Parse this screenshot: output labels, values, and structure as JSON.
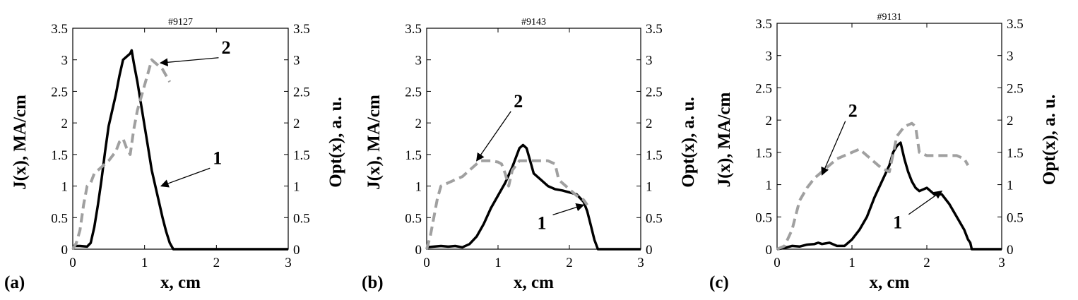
{
  "chart_data": [
    {
      "type": "line",
      "panel_label": "(a)",
      "title": "#9127",
      "xlabel": "x, cm",
      "ylabel_left": "J(x), MA/cm",
      "ylabel_right": "Opt(x), a. u.",
      "xlim": [
        0,
        3
      ],
      "ylim": [
        0,
        3.5
      ],
      "xticks": [
        "0",
        "1",
        "2",
        "3"
      ],
      "yticks": [
        "0",
        "0.5",
        "1",
        "1.5",
        "2",
        "2.5",
        "3",
        "3.5"
      ],
      "series": [
        {
          "label": "1",
          "style": "solid",
          "color": "#000000",
          "x": [
            0.0,
            0.05,
            0.1,
            0.2,
            0.25,
            0.3,
            0.35,
            0.4,
            0.45,
            0.5,
            0.55,
            0.6,
            0.65,
            0.7,
            0.75,
            0.8,
            0.82,
            0.85,
            0.9,
            0.95,
            1.0,
            1.05,
            1.1,
            1.15,
            1.2,
            1.25,
            1.3,
            1.35,
            1.4,
            1.45,
            2.0,
            2.5,
            3.0
          ],
          "y": [
            0.05,
            0.05,
            0.05,
            0.04,
            0.1,
            0.35,
            0.7,
            1.1,
            1.55,
            1.95,
            2.2,
            2.45,
            2.75,
            3.0,
            3.05,
            3.1,
            3.15,
            2.95,
            2.65,
            2.3,
            1.95,
            1.6,
            1.25,
            1.0,
            0.75,
            0.5,
            0.28,
            0.1,
            0.0,
            0.0,
            0.0,
            0.0,
            0.0
          ]
        },
        {
          "label": "2",
          "style": "dashed",
          "color": "#a0a0a0",
          "x": [
            0.0,
            0.05,
            0.1,
            0.15,
            0.2,
            0.25,
            0.3,
            0.4,
            0.5,
            0.6,
            0.65,
            0.7,
            0.75,
            0.8,
            0.85,
            0.9,
            0.95,
            1.0,
            1.05,
            1.1,
            1.15,
            1.2,
            1.25,
            1.3,
            1.35
          ],
          "y": [
            0.0,
            0.1,
            0.3,
            0.7,
            1.0,
            1.05,
            1.2,
            1.3,
            1.4,
            1.55,
            1.7,
            1.75,
            1.6,
            1.5,
            1.9,
            2.2,
            2.4,
            2.6,
            2.8,
            3.0,
            2.95,
            2.9,
            2.85,
            2.75,
            2.65
          ]
        }
      ],
      "annotations": [
        {
          "text": "1",
          "series": "1",
          "text_x": 1.95,
          "text_y": 1.35,
          "arrow_to": [
            1.23,
            1.0
          ]
        },
        {
          "text": "2",
          "series": "2",
          "text_x": 2.07,
          "text_y": 3.1,
          "arrow_to": [
            1.22,
            2.95
          ]
        }
      ]
    },
    {
      "type": "line",
      "panel_label": "(b)",
      "title": "#9143",
      "xlabel": "x, cm",
      "ylabel_left": "J(x), MA/cm",
      "ylabel_right": "Opt(x), a. u.",
      "xlim": [
        0,
        3
      ],
      "ylim": [
        0,
        3.5
      ],
      "xticks": [
        "0",
        "1",
        "2",
        "3"
      ],
      "yticks": [
        "0",
        "0.5",
        "1",
        "1.5",
        "2",
        "2.5",
        "3",
        "3.5"
      ],
      "series": [
        {
          "label": "1",
          "style": "solid",
          "color": "#000000",
          "x": [
            0.0,
            0.1,
            0.2,
            0.3,
            0.4,
            0.5,
            0.6,
            0.7,
            0.8,
            0.9,
            1.0,
            1.1,
            1.2,
            1.3,
            1.35,
            1.4,
            1.45,
            1.5,
            1.6,
            1.7,
            1.8,
            1.9,
            2.0,
            2.1,
            2.2,
            2.25,
            2.3,
            2.35,
            2.4,
            2.5,
            3.0
          ],
          "y": [
            0.03,
            0.04,
            0.05,
            0.04,
            0.05,
            0.03,
            0.08,
            0.2,
            0.4,
            0.65,
            0.85,
            1.05,
            1.3,
            1.6,
            1.65,
            1.6,
            1.4,
            1.2,
            1.1,
            1.0,
            0.95,
            0.93,
            0.9,
            0.87,
            0.75,
            0.6,
            0.38,
            0.15,
            0.0,
            0.0,
            0.0
          ]
        },
        {
          "label": "2",
          "style": "dashed",
          "color": "#a0a0a0",
          "x": [
            0.0,
            0.05,
            0.1,
            0.15,
            0.2,
            0.3,
            0.4,
            0.5,
            0.6,
            0.7,
            0.75,
            0.8,
            0.9,
            1.0,
            1.05,
            1.1,
            1.15,
            1.2,
            1.3,
            1.5,
            1.7,
            1.8,
            1.85,
            1.9,
            2.0,
            2.1,
            2.2,
            2.25
          ],
          "y": [
            0.0,
            0.2,
            0.5,
            0.8,
            1.0,
            1.05,
            1.1,
            1.15,
            1.25,
            1.35,
            1.4,
            1.4,
            1.4,
            1.38,
            1.35,
            1.2,
            1.0,
            1.25,
            1.4,
            1.4,
            1.4,
            1.35,
            1.1,
            1.05,
            0.95,
            0.85,
            0.78,
            0.7
          ]
        }
      ],
      "annotations": [
        {
          "text": "1",
          "series": "1",
          "text_x": 1.55,
          "text_y": 0.32,
          "arrow_to": [
            2.2,
            0.7
          ]
        },
        {
          "text": "2",
          "series": "2",
          "text_x": 1.22,
          "text_y": 2.25,
          "arrow_to": [
            0.7,
            1.4
          ]
        }
      ]
    },
    {
      "type": "line",
      "panel_label": "(c)",
      "title": "#9131",
      "xlabel": "x, cm",
      "ylabel_left": "J(x), MA/cm",
      "ylabel_right": "Opt(x), a. u.",
      "xlim": [
        0,
        3
      ],
      "ylim": [
        0,
        3.5
      ],
      "xticks": [
        "0",
        "1",
        "2",
        "3"
      ],
      "yticks": [
        "0",
        "0.5",
        "1",
        "1.5",
        "2",
        "2.5",
        "3",
        "3.5"
      ],
      "series": [
        {
          "label": "1",
          "style": "solid",
          "color": "#000000",
          "x": [
            0.0,
            0.1,
            0.2,
            0.3,
            0.4,
            0.5,
            0.55,
            0.6,
            0.7,
            0.8,
            0.9,
            1.0,
            1.1,
            1.2,
            1.3,
            1.4,
            1.5,
            1.55,
            1.6,
            1.65,
            1.7,
            1.75,
            1.8,
            1.85,
            1.9,
            2.0,
            2.1,
            2.2,
            2.3,
            2.4,
            2.5,
            2.55,
            2.58,
            2.6,
            3.0
          ],
          "y": [
            0.0,
            0.02,
            0.05,
            0.04,
            0.07,
            0.08,
            0.1,
            0.08,
            0.1,
            0.05,
            0.05,
            0.15,
            0.3,
            0.5,
            0.8,
            1.05,
            1.3,
            1.5,
            1.6,
            1.65,
            1.4,
            1.2,
            1.05,
            0.95,
            0.9,
            0.95,
            0.85,
            0.85,
            0.7,
            0.5,
            0.3,
            0.15,
            0.1,
            0.0,
            0.0
          ]
        },
        {
          "label": "2",
          "style": "dashed",
          "color": "#a0a0a0",
          "x": [
            0.0,
            0.1,
            0.2,
            0.3,
            0.4,
            0.5,
            0.6,
            0.7,
            0.8,
            0.9,
            1.0,
            1.1,
            1.2,
            1.3,
            1.4,
            1.5,
            1.6,
            1.7,
            1.8,
            1.85,
            1.9,
            2.0,
            2.2,
            2.4,
            2.5,
            2.55
          ],
          "y": [
            0.0,
            0.05,
            0.3,
            0.75,
            0.95,
            1.1,
            1.2,
            1.3,
            1.4,
            1.45,
            1.5,
            1.55,
            1.45,
            1.35,
            1.25,
            1.2,
            1.75,
            1.9,
            1.95,
            1.9,
            1.5,
            1.45,
            1.45,
            1.45,
            1.4,
            1.3
          ]
        }
      ],
      "annotations": [
        {
          "text": "1",
          "series": "1",
          "text_x": 1.55,
          "text_y": 0.32,
          "arrow_to": [
            2.2,
            0.9
          ]
        },
        {
          "text": "2",
          "series": "2",
          "text_x": 0.95,
          "text_y": 2.05,
          "arrow_to": [
            0.6,
            1.15
          ]
        }
      ]
    }
  ]
}
